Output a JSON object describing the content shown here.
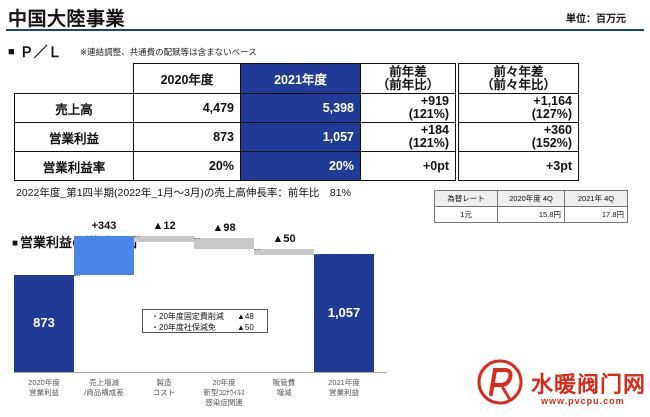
{
  "header": {
    "title": "中国大陸事業",
    "unit": "単位：百万元"
  },
  "pl_section": {
    "bullet": "■",
    "title": "Ｐ／Ｌ",
    "note": "※連結調整、共通費の配賦等は含まないベース"
  },
  "pl_table": {
    "headers": {
      "y2020": "2020年度",
      "y2021": "2021年度",
      "diff_line1": "前年差",
      "diff_line2": "（前年比）",
      "diff2_line1": "前々年差",
      "diff2_line2": "（前々年比）"
    },
    "rows": [
      {
        "label": "売上高",
        "y2020": "4,479",
        "y2021": "5,398",
        "diff_a": "+919",
        "diff_b": "(121%)",
        "diff2_a": "+1,164",
        "diff2_b": "(127%)"
      },
      {
        "label": "営業利益",
        "y2020": "873",
        "y2021": "1,057",
        "diff_a": "+184",
        "diff_b": "(121%)",
        "diff2_a": "+360",
        "diff2_b": "(152%)"
      },
      {
        "label": "営業利益率",
        "y2020": "20%",
        "y2021": "20%",
        "diff_a": "+0pt",
        "diff_b": "",
        "diff2_a": "+3pt",
        "diff2_b": ""
      }
    ]
  },
  "growth_note": "2022年度_第1四半期(2022年_1月～3月)の売上高伸長率：前年比　81%",
  "fx_table": {
    "header": [
      "為替レート",
      "2020年度 4Q",
      "2021年 4Q"
    ],
    "row": [
      "1元",
      "15.8円",
      "17.8円"
    ]
  },
  "waterfall_section": {
    "bullet": "■",
    "title": "営業利益の増減要因"
  },
  "chart_data": {
    "type": "waterfall",
    "title": "営業利益の増減要因",
    "categories": [
      [
        "2020年度",
        "営業利益"
      ],
      [
        "売上増減",
        "/商品構成差"
      ],
      [
        "製造",
        "コスト"
      ],
      [
        "20年度",
        "新型ｺﾛﾅｳｲﾙｽ",
        "感染症関連"
      ],
      [
        "販管費",
        "増減"
      ],
      [
        "2021年度",
        "営業利益"
      ]
    ],
    "values": [
      873,
      343,
      -12,
      -98,
      -50,
      1057
    ],
    "kinds": [
      "total",
      "increase",
      "decrease",
      "decrease",
      "decrease",
      "total"
    ],
    "labels": [
      "873",
      "+343",
      "▲12",
      "▲98",
      "▲50",
      "1,057"
    ],
    "ylim": [
      0,
      1300
    ],
    "annotation": [
      {
        "text": "・20年度固定費削減",
        "value": "▲48"
      },
      {
        "text": "・20年度社保減免",
        "value": "▲50"
      }
    ]
  },
  "colors": {
    "total_bar": "#1f3b96",
    "increase_bar": "#4a86e8",
    "decrease_bar": "#c9c9c9"
  },
  "watermark": {
    "text": "水暖阀门网",
    "url": "www.pvcpu.com"
  }
}
